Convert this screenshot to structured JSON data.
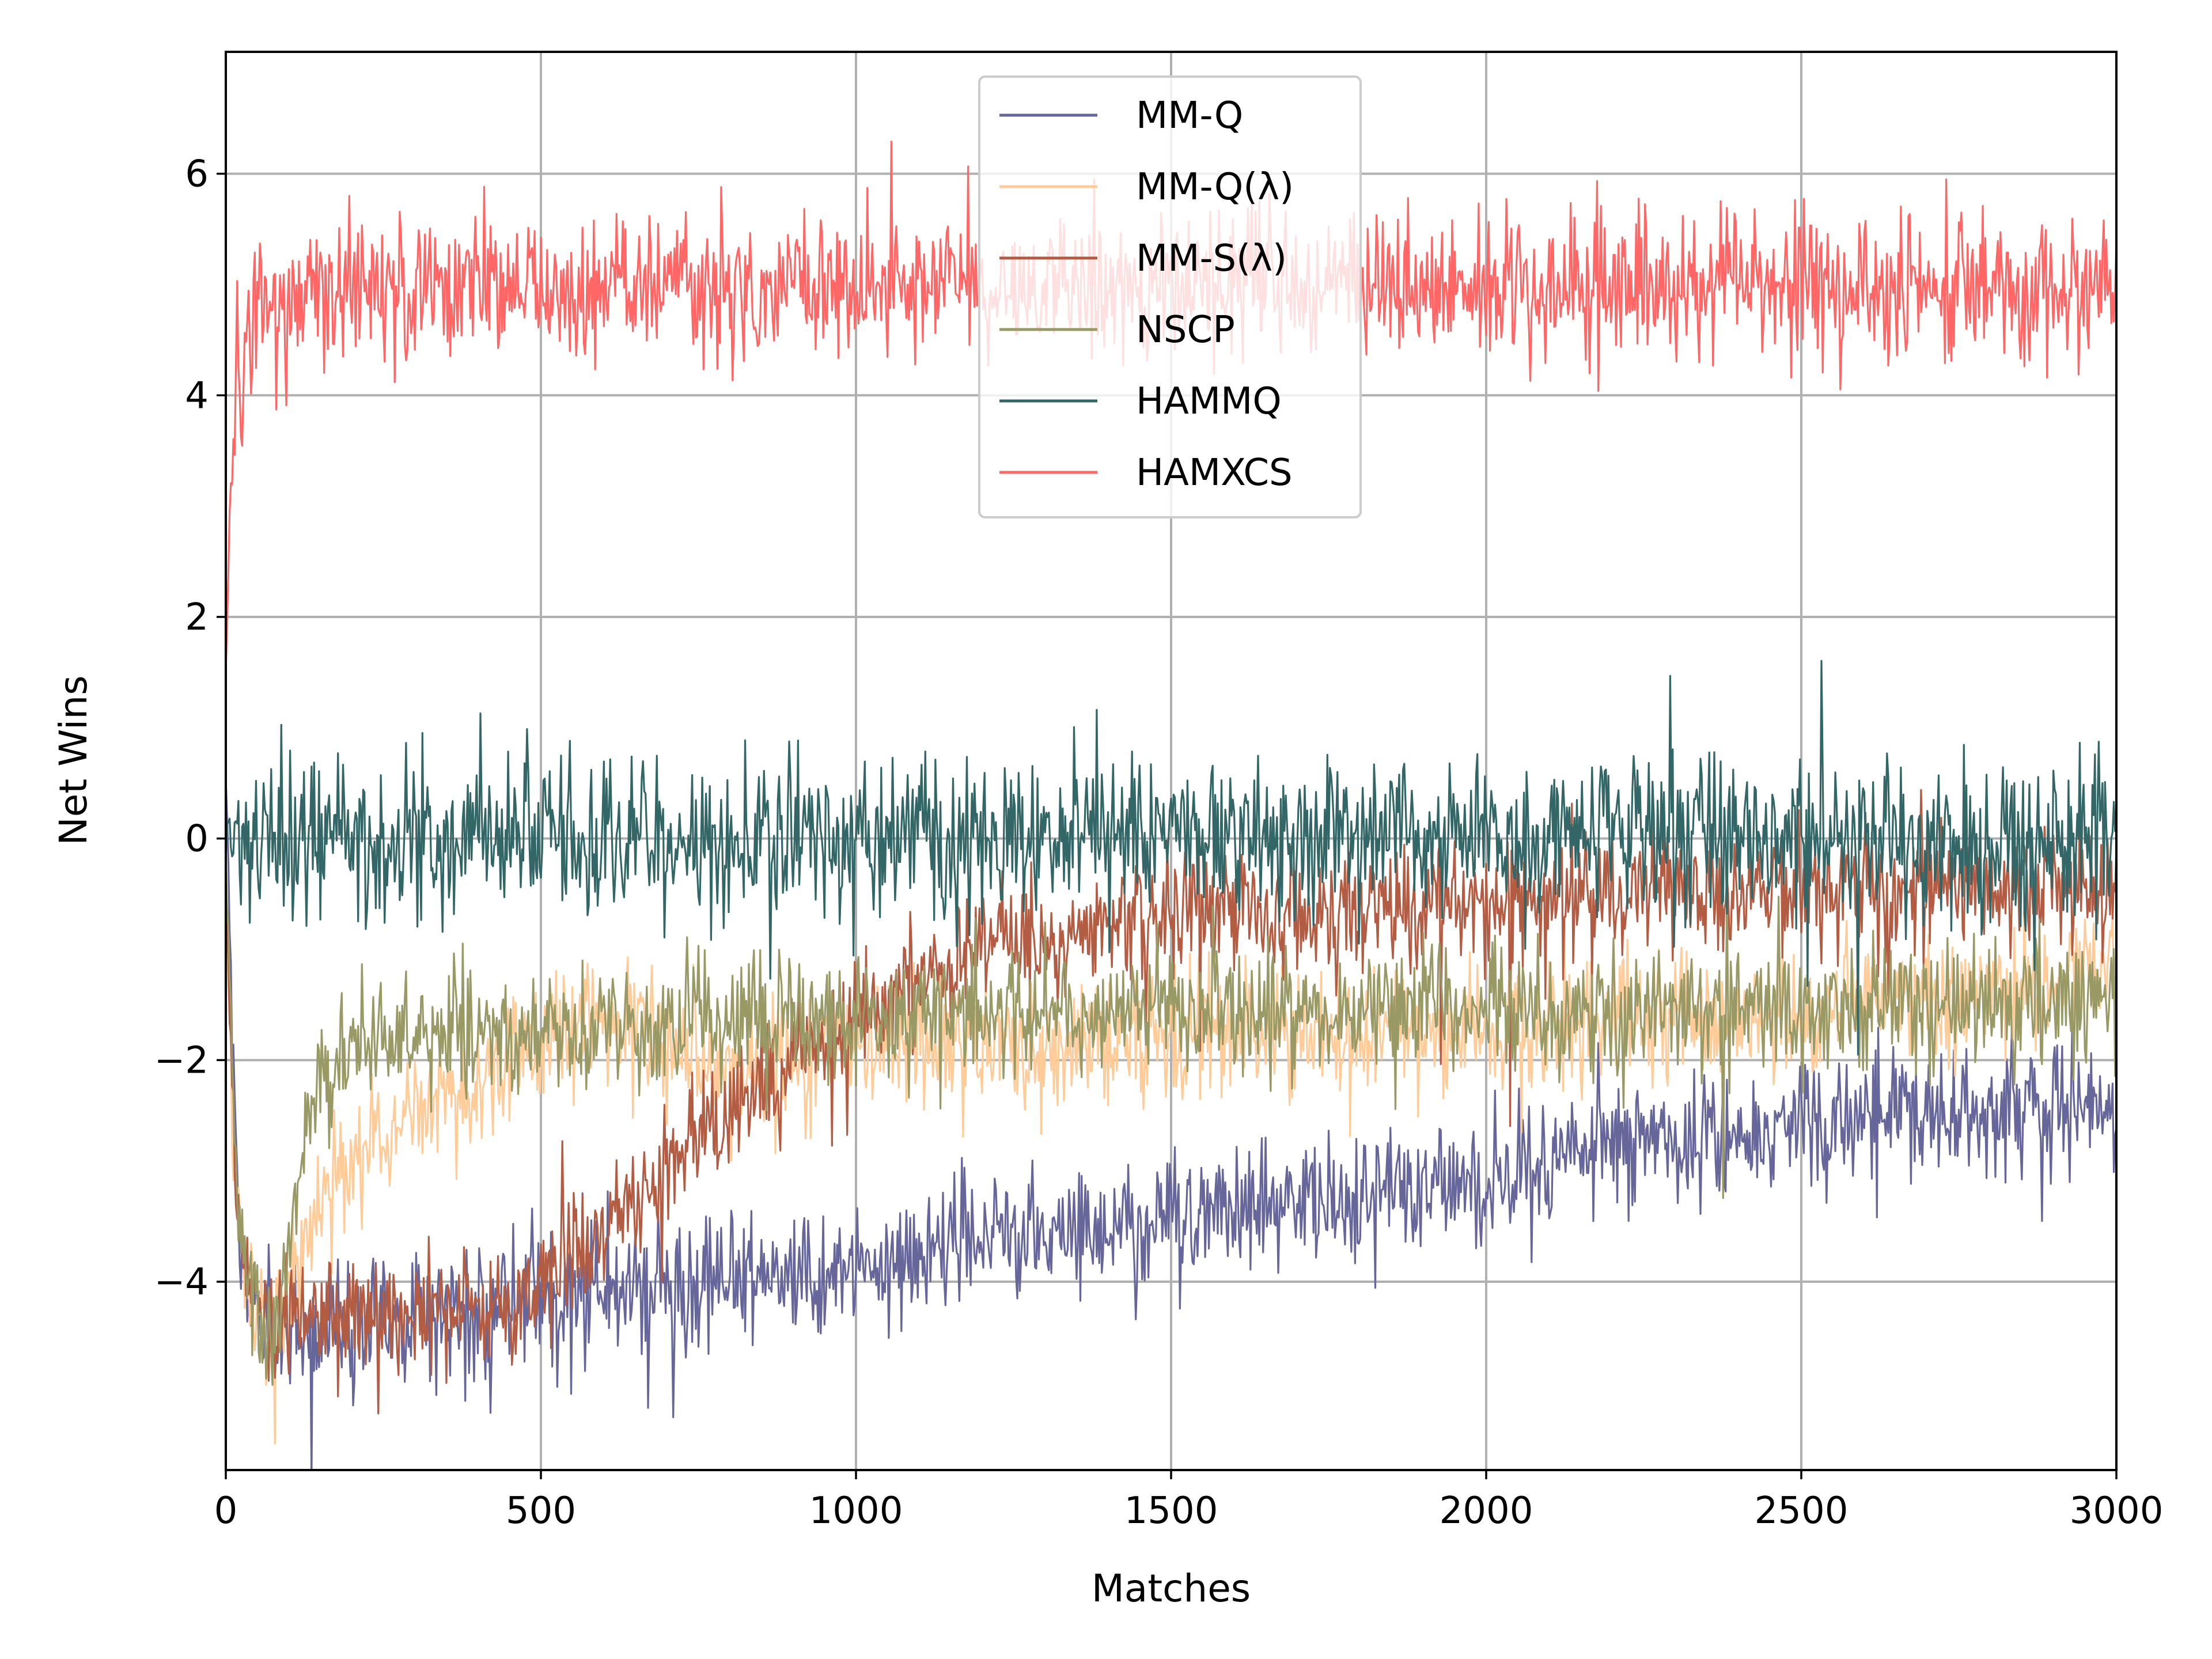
{
  "chart_data": {
    "type": "line",
    "title": "",
    "xlabel": "Matches",
    "ylabel": "Net Wins",
    "xlim": [
      0,
      3000
    ],
    "ylim": [
      -5.7,
      7.1
    ],
    "xticks": [
      0,
      500,
      1000,
      1500,
      2000,
      2500,
      3000
    ],
    "xtick_labels": [
      "0",
      "500",
      "1000",
      "1500",
      "2000",
      "2500",
      "3000"
    ],
    "yticks": [
      -4,
      -2,
      0,
      2,
      4,
      6
    ],
    "ytick_labels": [
      "−4",
      "−2",
      "0",
      "2",
      "4",
      "6"
    ],
    "grid": true,
    "legend_position": "top-center",
    "series": [
      {
        "name": "MM-Q",
        "color": "#66669a",
        "noise": 0.3,
        "trend": [
          [
            0,
            0.6
          ],
          [
            20,
            -3.6
          ],
          [
            40,
            -4.2
          ],
          [
            60,
            -4.4
          ],
          [
            100,
            -4.4
          ],
          [
            300,
            -4.3
          ],
          [
            500,
            -4.2
          ],
          [
            700,
            -4.0
          ],
          [
            900,
            -3.95
          ],
          [
            1000,
            -3.9
          ],
          [
            1200,
            -3.6
          ],
          [
            1400,
            -3.5
          ],
          [
            1500,
            -3.4
          ],
          [
            1700,
            -3.3
          ],
          [
            1900,
            -3.1
          ],
          [
            2100,
            -2.9
          ],
          [
            2300,
            -2.7
          ],
          [
            2500,
            -2.55
          ],
          [
            2700,
            -2.5
          ],
          [
            3000,
            -2.4
          ]
        ]
      },
      {
        "name": "MM-Q(λ)",
        "color": "#ffcc99",
        "noise": 0.28,
        "trend": [
          [
            0,
            -0.5
          ],
          [
            15,
            -3.2
          ],
          [
            40,
            -4.3
          ],
          [
            70,
            -4.5
          ],
          [
            100,
            -4.0
          ],
          [
            150,
            -3.2
          ],
          [
            250,
            -2.7
          ],
          [
            400,
            -2.2
          ],
          [
            500,
            -1.8
          ],
          [
            600,
            -1.6
          ],
          [
            700,
            -1.9
          ],
          [
            800,
            -2.1
          ],
          [
            900,
            -2.0
          ],
          [
            1000,
            -1.8
          ],
          [
            1200,
            -1.9
          ],
          [
            1500,
            -1.8
          ],
          [
            2000,
            -1.7
          ],
          [
            2500,
            -1.6
          ],
          [
            3000,
            -1.2
          ]
        ]
      },
      {
        "name": "MM-S(λ)",
        "color": "#b35c44",
        "noise": 0.28,
        "trend": [
          [
            0,
            -0.3
          ],
          [
            15,
            -3.3
          ],
          [
            30,
            -4.0
          ],
          [
            60,
            -4.3
          ],
          [
            100,
            -4.3
          ],
          [
            300,
            -4.3
          ],
          [
            450,
            -4.2
          ],
          [
            550,
            -3.8
          ],
          [
            650,
            -3.2
          ],
          [
            750,
            -2.7
          ],
          [
            850,
            -2.2
          ],
          [
            950,
            -1.8
          ],
          [
            1100,
            -1.3
          ],
          [
            1300,
            -0.9
          ],
          [
            1500,
            -0.7
          ],
          [
            2000,
            -0.55
          ],
          [
            2500,
            -0.45
          ],
          [
            3000,
            -0.4
          ]
        ]
      },
      {
        "name": "NSCP",
        "color": "#999966",
        "noise": 0.28,
        "trend": [
          [
            0,
            -0.2
          ],
          [
            20,
            -3.5
          ],
          [
            60,
            -4.5
          ],
          [
            90,
            -4.2
          ],
          [
            120,
            -2.8
          ],
          [
            150,
            -2.2
          ],
          [
            200,
            -1.9
          ],
          [
            400,
            -1.75
          ],
          [
            600,
            -1.7
          ],
          [
            1000,
            -1.6
          ],
          [
            1500,
            -1.55
          ],
          [
            2000,
            -1.55
          ],
          [
            2500,
            -1.5
          ],
          [
            3000,
            -1.5
          ]
        ]
      },
      {
        "name": "HAMMQ",
        "color": "#336666",
        "noise": 0.36,
        "trend": [
          [
            0,
            0.0
          ],
          [
            3000,
            0.0
          ]
        ]
      },
      {
        "name": "HAMXCS",
        "color": "#ff6666",
        "noise": 0.33,
        "trend": [
          [
            0,
            1.6
          ],
          [
            5,
            2.6
          ],
          [
            10,
            3.5
          ],
          [
            20,
            4.2
          ],
          [
            40,
            4.7
          ],
          [
            80,
            4.95
          ],
          [
            3000,
            5.0
          ]
        ]
      }
    ]
  }
}
